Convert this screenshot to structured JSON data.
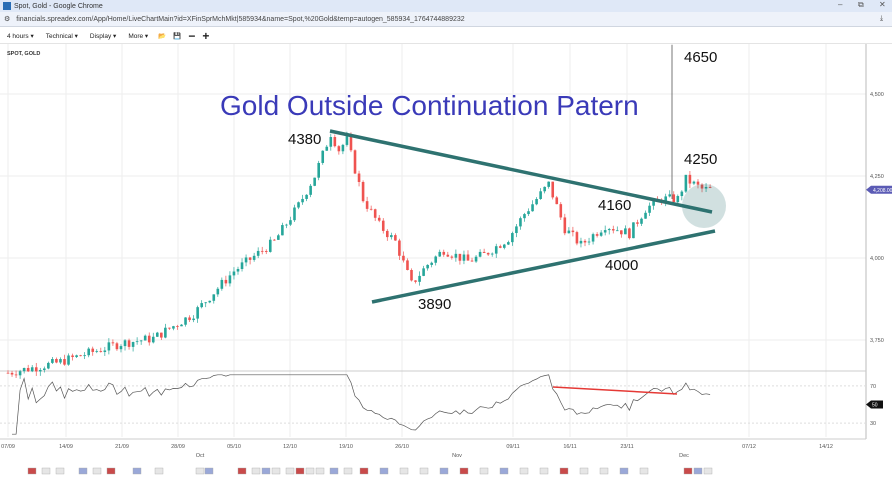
{
  "window": {
    "title": "Spot, Gold - Google Chrome",
    "url": "financials.spreadex.com/App/Home/LiveChartMain?id=XFinSprMchMkt|585934&name=Spot,%20Gold&temp=autogen_585934_1764744889232",
    "minimize": "–",
    "restore": "⧉",
    "close": "✕"
  },
  "toolbar": {
    "interval": "4 hours ▾",
    "technical": "Technical ▾",
    "display": "Display ▾",
    "more": "More ▾",
    "icons": [
      "folder-open-icon",
      "save-icon",
      "zoom-out-icon",
      "zoom-in-icon"
    ],
    "minus": "−",
    "plus": "+"
  },
  "chart": {
    "symbol": "SPOT, GOLD",
    "current_price": "4,208.00",
    "rsi_current": "50"
  },
  "annotations": {
    "title": "Gold Outside Continuation Patern",
    "labels": [
      "4380",
      "3890",
      "4160",
      "4000",
      "4250",
      "4650"
    ]
  },
  "colors": {
    "bull": "#26a69a",
    "bear": "#ef5350",
    "trendline": "#2e7270",
    "title": "#3a3ab8",
    "price_badge": "#5b5bb5",
    "rsi_divergence": "#e53935"
  },
  "chart_data": {
    "type": "candlestick",
    "y_axis": {
      "ticks": [
        "4,500",
        "4,250",
        "4,000",
        "3,750"
      ],
      "values": [
        4500,
        4250,
        4000,
        3750
      ],
      "range": [
        3650,
        4700
      ]
    },
    "rsi_axis": {
      "ticks": [
        "70",
        "30"
      ],
      "values": [
        70,
        30
      ],
      "range": [
        15,
        85
      ]
    },
    "x_ticks": [
      "07/09",
      "14/09",
      "21/09",
      "28/09",
      "05/10",
      "12/10",
      "19/10",
      "26/10",
      "09/11",
      "16/11",
      "23/11",
      "07/12",
      "14/12"
    ],
    "month_labels": [
      "Oct",
      "Nov",
      "Dec"
    ],
    "price_path": [
      [
        "09-07",
        3650
      ],
      [
        "09-13",
        3680
      ],
      [
        "09-21",
        3740
      ],
      [
        "09-25",
        3755
      ],
      [
        "09-30",
        3830
      ],
      [
        "10-05",
        3960
      ],
      [
        "10-10",
        4050
      ],
      [
        "10-13",
        4160
      ],
      [
        "10-15",
        4250
      ],
      [
        "10-17",
        4380
      ],
      [
        "10-18",
        4330
      ],
      [
        "10-19",
        4360
      ],
      [
        "10-21",
        4180
      ],
      [
        "10-23",
        4100
      ],
      [
        "10-25",
        4050
      ],
      [
        "10-27",
        3920
      ],
      [
        "10-29",
        3980
      ],
      [
        "10-31",
        4025
      ],
      [
        "11-03",
        3990
      ],
      [
        "11-05",
        4010
      ],
      [
        "11-08",
        4060
      ],
      [
        "11-10",
        4135
      ],
      [
        "11-13",
        4225
      ],
      [
        "11-15",
        4090
      ],
      [
        "11-17",
        4040
      ],
      [
        "11-20",
        4100
      ],
      [
        "11-23",
        4075
      ],
      [
        "11-25",
        4150
      ],
      [
        "11-27",
        4180
      ],
      [
        "11-29",
        4180
      ],
      [
        "11-30",
        4240
      ],
      [
        "12-02",
        4210
      ],
      [
        "12-03",
        4208
      ]
    ],
    "spike_high": 4650,
    "grid": true
  }
}
